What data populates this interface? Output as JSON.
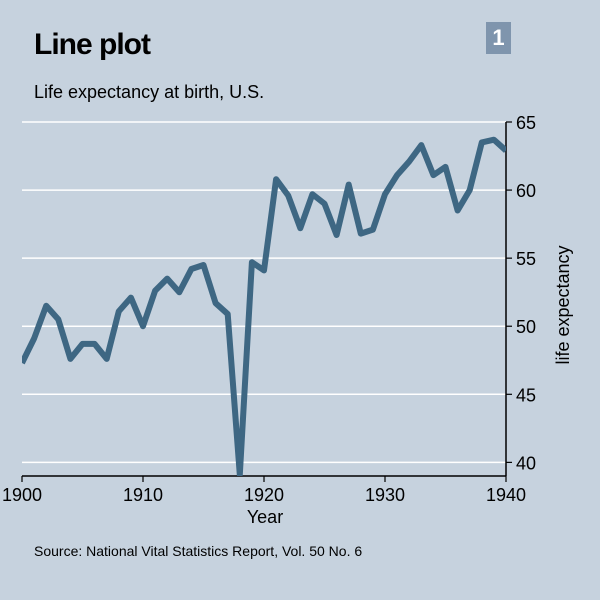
{
  "header": {
    "title": "Line plot",
    "subtitle": "Life expectancy at birth, U.S.",
    "badge": "1"
  },
  "footer": {
    "source": "Source:  National Vital Statistics Report, Vol. 50 No. 6"
  },
  "colors": {
    "background": "#c6d2de",
    "line": "#3e6783",
    "grid": "#ffffff",
    "badge": "#7f95ad"
  },
  "chart_data": {
    "type": "line",
    "xlabel": "Year",
    "ylabel": "life expectancy",
    "xlim": [
      1900,
      1940
    ],
    "ylim": [
      39,
      65
    ],
    "xticks": [
      1900,
      1910,
      1920,
      1930,
      1940
    ],
    "yticks": [
      40,
      45,
      50,
      55,
      60,
      65
    ],
    "grid": true,
    "y_axis_side": "right",
    "series": [
      {
        "x": [
          1900,
          1901,
          1902,
          1903,
          1904,
          1905,
          1906,
          1907,
          1908,
          1909,
          1910,
          1911,
          1912,
          1913,
          1914,
          1915,
          1916,
          1917,
          1918,
          1919,
          1920,
          1921,
          1922,
          1923,
          1924,
          1925,
          1926,
          1927,
          1928,
          1929,
          1930,
          1931,
          1932,
          1933,
          1934,
          1935,
          1936,
          1937,
          1938,
          1939,
          1940
        ],
        "values": [
          47.3,
          49.1,
          51.5,
          50.5,
          47.6,
          48.7,
          48.7,
          47.6,
          51.1,
          52.1,
          50.0,
          52.6,
          53.5,
          52.5,
          54.2,
          54.5,
          51.7,
          50.9,
          39.1,
          54.7,
          54.1,
          60.8,
          59.6,
          57.2,
          59.7,
          59.0,
          56.7,
          60.4,
          56.8,
          57.1,
          59.7,
          61.1,
          62.1,
          63.3,
          61.1,
          61.7,
          58.5,
          60.0,
          63.5,
          63.7,
          62.9
        ]
      }
    ]
  }
}
